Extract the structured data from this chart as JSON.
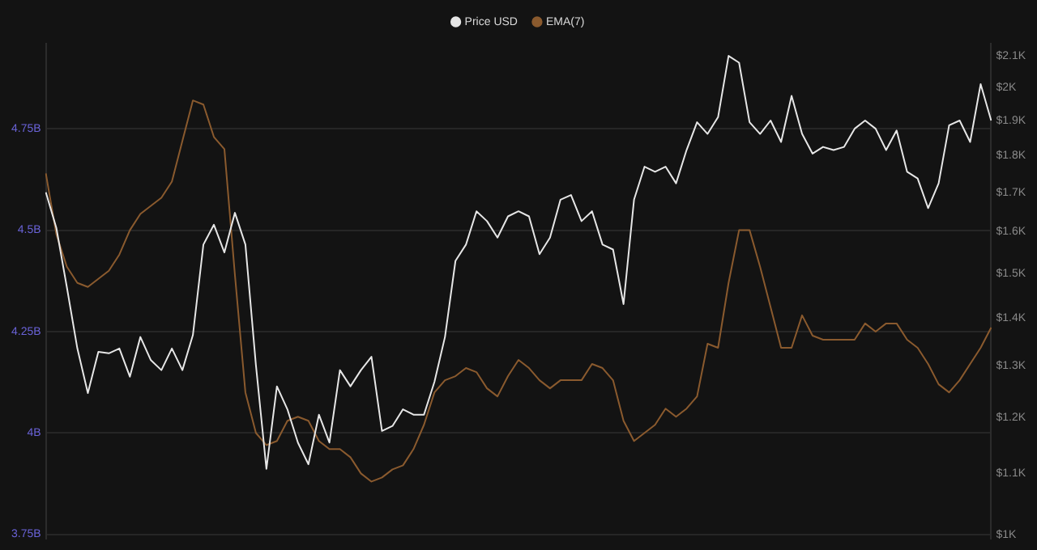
{
  "chart_data": {
    "type": "line",
    "categories": [
      null,
      null,
      null,
      null,
      null,
      null,
      null,
      null,
      null,
      null,
      null,
      null,
      null,
      null,
      null,
      null,
      null,
      null,
      null,
      null,
      null,
      null,
      null,
      null,
      null,
      null,
      null,
      null,
      null,
      null,
      null,
      null,
      null,
      null,
      null,
      null,
      null,
      null,
      null,
      null,
      null,
      null,
      null,
      null,
      null,
      null,
      null,
      null,
      null,
      null,
      null,
      null,
      null,
      null,
      null,
      null,
      null,
      null,
      null,
      null,
      null,
      null,
      null,
      null,
      null,
      null,
      null,
      null,
      null,
      null,
      null,
      null,
      null,
      null,
      null,
      null,
      null,
      null,
      null,
      null,
      null,
      null,
      null,
      null,
      null,
      null,
      null,
      null,
      null,
      null,
      null
    ],
    "series": [
      {
        "name": "Price USD",
        "color": "#e6e6e6",
        "axis": "y2",
        "values": [
          1700,
          1609,
          1468,
          1335,
          1246,
          1328,
          1325,
          1335,
          1278,
          1359,
          1311,
          1291,
          1335,
          1291,
          1363,
          1568,
          1617,
          1549,
          1647,
          1568,
          1301,
          1108,
          1259,
          1215,
          1154,
          1116,
          1205,
          1154,
          1291,
          1259,
          1291,
          1318,
          1175,
          1184,
          1215,
          1205,
          1205,
          1268,
          1359,
          1529,
          1568,
          1651,
          1626,
          1585,
          1638,
          1651,
          1638,
          1545,
          1585,
          1681,
          1693,
          1626,
          1651,
          1568,
          1556,
          1430,
          1681,
          1769,
          1755,
          1769,
          1724,
          1815,
          1895,
          1861,
          1910,
          2100,
          2078,
          1895,
          1861,
          1900,
          1838,
          1974,
          1861,
          1805,
          1824,
          1815,
          1824,
          1876,
          1900,
          1876,
          1815,
          1871,
          1755,
          1737,
          1659,
          1724,
          1886,
          1900,
          1838,
          2010,
          1900
        ]
      },
      {
        "name": "EMA(7)",
        "color": "#8a5a2e",
        "axis": "y",
        "values": [
          4.64,
          4.49,
          4.41,
          4.37,
          4.36,
          4.38,
          4.4,
          4.44,
          4.5,
          4.54,
          4.56,
          4.58,
          4.62,
          4.72,
          4.82,
          4.81,
          4.73,
          4.7,
          4.39,
          4.1,
          4.0,
          3.97,
          3.98,
          4.03,
          4.04,
          4.03,
          3.98,
          3.96,
          3.96,
          3.94,
          3.9,
          3.88,
          3.89,
          3.91,
          3.92,
          3.96,
          4.02,
          4.1,
          4.13,
          4.14,
          4.16,
          4.15,
          4.11,
          4.09,
          4.14,
          4.18,
          4.16,
          4.13,
          4.11,
          4.13,
          4.13,
          4.13,
          4.17,
          4.16,
          4.13,
          4.03,
          3.98,
          4.0,
          4.02,
          4.06,
          4.04,
          4.06,
          4.09,
          4.22,
          4.21,
          4.37,
          4.5,
          4.5,
          4.41,
          4.31,
          4.21,
          4.21,
          4.29,
          4.24,
          4.23,
          4.23,
          4.23,
          4.23,
          4.27,
          4.25,
          4.27,
          4.27,
          4.23,
          4.21,
          4.17,
          4.12,
          4.1,
          4.13,
          4.17,
          4.21,
          4.26
        ]
      }
    ],
    "ylim": [
      3.74,
      4.96
    ],
    "yticks": [
      {
        "value": 3.75,
        "label": "3.75B"
      },
      {
        "value": 4,
        "label": "4B"
      },
      {
        "value": 4.25,
        "label": "4.25B"
      },
      {
        "value": 4.5,
        "label": "4.5B"
      },
      {
        "value": 4.75,
        "label": "4.75B"
      }
    ],
    "y2lim": [
      995,
      2140
    ],
    "y2ticks": [
      {
        "value": 1000,
        "label": "$1K"
      },
      {
        "value": 1100,
        "label": "$1.1K"
      },
      {
        "value": 1200,
        "label": "$1.2K"
      },
      {
        "value": 1300,
        "label": "$1.3K"
      },
      {
        "value": 1400,
        "label": "$1.4K"
      },
      {
        "value": 1500,
        "label": "$1.5K"
      },
      {
        "value": 1600,
        "label": "$1.6K"
      },
      {
        "value": 1700,
        "label": "$1.7K"
      },
      {
        "value": 1800,
        "label": "$1.8K"
      },
      {
        "value": 1900,
        "label": "$1.9K"
      },
      {
        "value": 2000,
        "label": "$2K"
      },
      {
        "value": 2100,
        "label": "$2.1K"
      }
    ],
    "log": "y2",
    "grid": "y",
    "legend": "top",
    "marker": "none",
    "line_style": "solid"
  }
}
